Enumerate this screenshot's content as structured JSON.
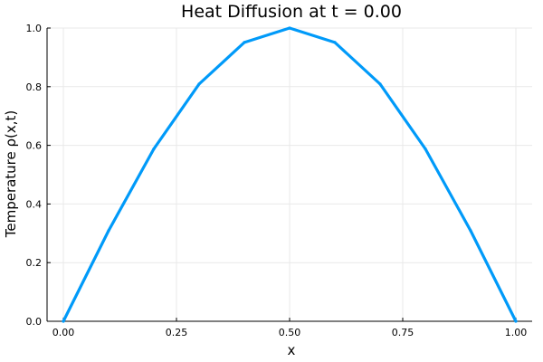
{
  "chart_data": {
    "type": "line",
    "title": "Heat Diffusion at t = 0.00",
    "xlabel": "x",
    "ylabel": "Temperature ρ(x,t)",
    "xlim": [
      0.0,
      1.0
    ],
    "ylim": [
      0.0,
      1.0
    ],
    "x_ticks": [
      "0.00",
      "0.25",
      "0.50",
      "0.75",
      "1.00"
    ],
    "y_ticks": [
      "0.0",
      "0.2",
      "0.4",
      "0.6",
      "0.8",
      "1.0"
    ],
    "grid": true,
    "legend": "none",
    "series": [
      {
        "color": "#009af9",
        "x": [
          0.0,
          0.1,
          0.2,
          0.3,
          0.4,
          0.5,
          0.6,
          0.7,
          0.8,
          0.9,
          1.0
        ],
        "y": [
          0.0,
          0.309,
          0.588,
          0.809,
          0.951,
          1.0,
          0.951,
          0.809,
          0.588,
          0.309,
          0.0
        ]
      }
    ]
  }
}
